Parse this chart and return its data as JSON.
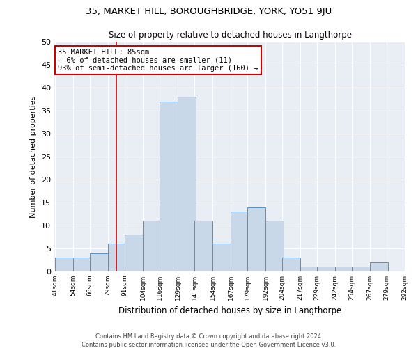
{
  "title1": "35, MARKET HILL, BOROUGHBRIDGE, YORK, YO51 9JU",
  "title2": "Size of property relative to detached houses in Langthorpe",
  "xlabel": "Distribution of detached houses by size in Langthorpe",
  "ylabel": "Number of detached properties",
  "footer1": "Contains HM Land Registry data © Crown copyright and database right 2024.",
  "footer2": "Contains public sector information licensed under the Open Government Licence v3.0.",
  "annotation_line1": "35 MARKET HILL: 85sqm",
  "annotation_line2": "← 6% of detached houses are smaller (11)",
  "annotation_line3": "93% of semi-detached houses are larger (160) →",
  "property_size": 85,
  "bar_color": "#c8d8e8",
  "bar_edge_color": "#5a8fc0",
  "vline_color": "#cc0000",
  "annotation_box_color": "#cc0000",
  "plot_bg_color": "#e8eef4",
  "fig_bg_color": "#ffffff",
  "bin_starts": [
    41,
    54,
    66,
    79,
    91,
    104,
    116,
    129,
    141,
    154,
    167,
    179,
    192,
    204,
    217,
    229,
    242,
    254,
    267,
    279
  ],
  "bin_width": 13,
  "bar_heights": [
    3,
    3,
    4,
    6,
    8,
    11,
    37,
    38,
    11,
    6,
    13,
    14,
    11,
    3,
    1,
    1,
    1,
    1,
    2,
    0
  ],
  "ylim": [
    0,
    50
  ],
  "yticks": [
    0,
    5,
    10,
    15,
    20,
    25,
    30,
    35,
    40,
    45,
    50
  ],
  "xtick_labels": [
    "41sqm",
    "54sqm",
    "66sqm",
    "79sqm",
    "91sqm",
    "104sqm",
    "116sqm",
    "129sqm",
    "141sqm",
    "154sqm",
    "167sqm",
    "179sqm",
    "192sqm",
    "204sqm",
    "217sqm",
    "229sqm",
    "242sqm",
    "254sqm",
    "267sqm",
    "279sqm",
    "292sqm"
  ]
}
